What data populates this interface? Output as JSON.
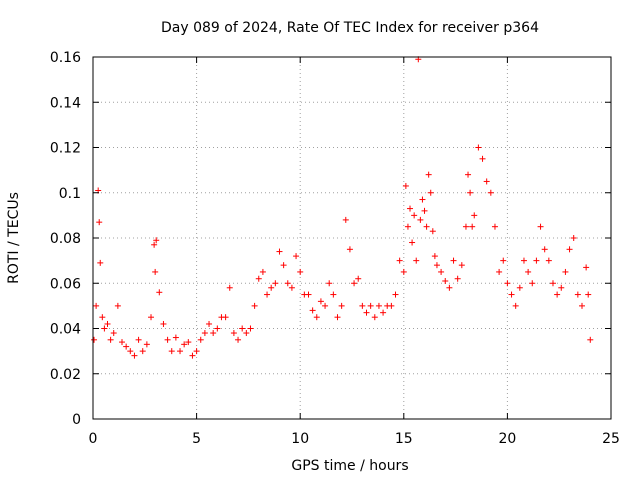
{
  "chart_data": {
    "type": "scatter",
    "title": "Day 089 of 2024, Rate Of TEC Index for receiver p364",
    "xlabel": "GPS time / hours",
    "ylabel": "ROTI / TECUs",
    "xlim": [
      0,
      25
    ],
    "ylim": [
      0,
      0.16
    ],
    "xticks": [
      0,
      5,
      10,
      15,
      20,
      25
    ],
    "xtick_labels": [
      "0",
      "5",
      "10",
      "15",
      "20",
      "25"
    ],
    "yticks": [
      0,
      0.02,
      0.04,
      0.06,
      0.08,
      0.1,
      0.12,
      0.14,
      0.16
    ],
    "ytick_labels": [
      "0",
      "0.02",
      "0.04",
      "0.06",
      "0.08",
      "0.1",
      "0.12",
      "0.14",
      "0.16"
    ],
    "grid": true,
    "marker": "+",
    "series": [
      {
        "name": "ROTI",
        "color": "#ff0000",
        "x": [
          0.05,
          0.15,
          0.25,
          0.3,
          0.35,
          0.45,
          0.55,
          0.7,
          0.85,
          1.0,
          1.2,
          1.4,
          1.6,
          1.8,
          2.0,
          2.2,
          2.4,
          2.6,
          2.8,
          2.95,
          3.0,
          3.05,
          3.2,
          3.4,
          3.6,
          3.8,
          4.0,
          4.2,
          4.4,
          4.6,
          4.8,
          5.0,
          5.2,
          5.4,
          5.6,
          5.8,
          6.0,
          6.2,
          6.4,
          6.6,
          6.8,
          7.0,
          7.2,
          7.4,
          7.6,
          7.8,
          8.0,
          8.2,
          8.4,
          8.6,
          8.8,
          9.0,
          9.2,
          9.4,
          9.6,
          9.8,
          10.0,
          10.2,
          10.4,
          10.6,
          10.8,
          11.0,
          11.2,
          11.4,
          11.6,
          11.8,
          12.0,
          12.2,
          12.4,
          12.6,
          12.8,
          13.0,
          13.2,
          13.4,
          13.6,
          13.8,
          14.0,
          14.2,
          14.4,
          14.6,
          14.8,
          15.0,
          15.1,
          15.2,
          15.3,
          15.4,
          15.5,
          15.6,
          15.7,
          15.8,
          15.9,
          16.0,
          16.1,
          16.2,
          16.3,
          16.4,
          16.5,
          16.6,
          16.8,
          17.0,
          17.2,
          17.4,
          17.6,
          17.8,
          18.0,
          18.1,
          18.2,
          18.3,
          18.4,
          18.6,
          18.8,
          19.0,
          19.2,
          19.4,
          19.6,
          19.8,
          20.0,
          20.2,
          20.4,
          20.6,
          20.8,
          21.0,
          21.2,
          21.4,
          21.6,
          21.8,
          22.0,
          22.2,
          22.4,
          22.6,
          22.8,
          23.0,
          23.2,
          23.4,
          23.6,
          23.8,
          23.9,
          24.0
        ],
        "y": [
          0.035,
          0.05,
          0.101,
          0.087,
          0.069,
          0.045,
          0.04,
          0.042,
          0.035,
          0.038,
          0.05,
          0.034,
          0.032,
          0.03,
          0.028,
          0.035,
          0.03,
          0.033,
          0.045,
          0.077,
          0.065,
          0.079,
          0.056,
          0.042,
          0.035,
          0.03,
          0.036,
          0.03,
          0.033,
          0.034,
          0.028,
          0.03,
          0.035,
          0.038,
          0.042,
          0.038,
          0.04,
          0.045,
          0.045,
          0.058,
          0.038,
          0.035,
          0.04,
          0.038,
          0.04,
          0.05,
          0.062,
          0.065,
          0.055,
          0.058,
          0.06,
          0.074,
          0.068,
          0.06,
          0.058,
          0.072,
          0.065,
          0.055,
          0.055,
          0.048,
          0.045,
          0.052,
          0.05,
          0.06,
          0.055,
          0.045,
          0.05,
          0.088,
          0.075,
          0.06,
          0.062,
          0.05,
          0.047,
          0.05,
          0.045,
          0.05,
          0.047,
          0.05,
          0.05,
          0.055,
          0.07,
          0.065,
          0.103,
          0.085,
          0.093,
          0.078,
          0.09,
          0.07,
          0.159,
          0.088,
          0.097,
          0.092,
          0.085,
          0.108,
          0.1,
          0.083,
          0.072,
          0.068,
          0.065,
          0.061,
          0.058,
          0.07,
          0.062,
          0.068,
          0.085,
          0.108,
          0.1,
          0.085,
          0.09,
          0.12,
          0.115,
          0.105,
          0.1,
          0.085,
          0.065,
          0.07,
          0.06,
          0.055,
          0.05,
          0.058,
          0.07,
          0.065,
          0.06,
          0.07,
          0.085,
          0.075,
          0.07,
          0.06,
          0.055,
          0.058,
          0.065,
          0.075,
          0.08,
          0.055,
          0.05,
          0.067,
          0.055,
          0.035
        ]
      }
    ]
  }
}
